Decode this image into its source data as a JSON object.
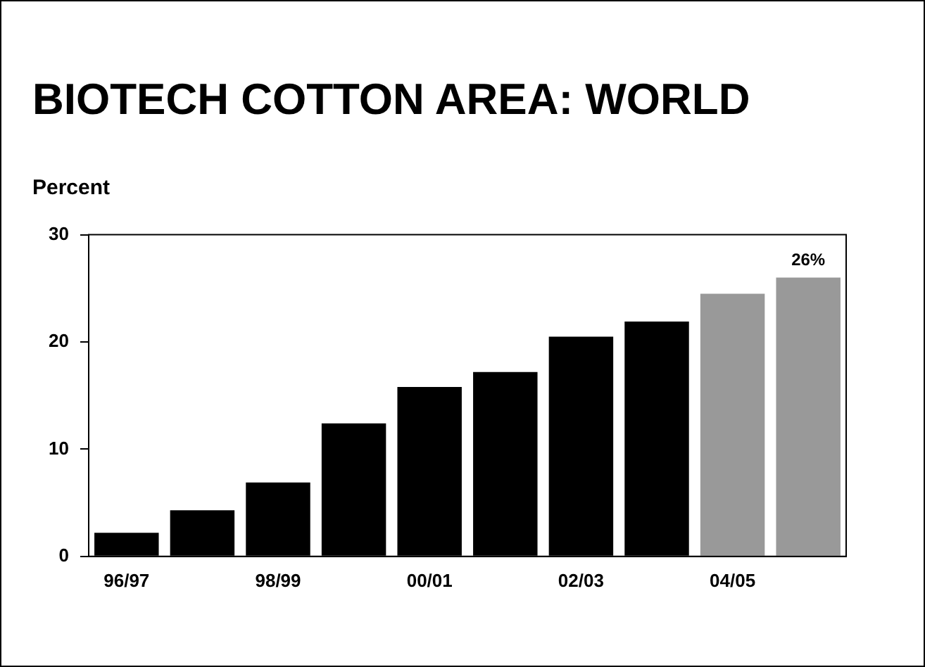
{
  "chart_data": {
    "type": "bar",
    "title": "BIOTECH COTTON AREA: WORLD",
    "ylabel": "Percent",
    "categories": [
      "96/97",
      null,
      "98/99",
      null,
      "00/01",
      null,
      "02/03",
      null,
      "04/05",
      null
    ],
    "values": [
      2.2,
      4.3,
      6.9,
      12.4,
      15.8,
      17.2,
      20.5,
      21.9,
      24.5,
      26
    ],
    "colors": [
      "#000000",
      "#000000",
      "#000000",
      "#000000",
      "#000000",
      "#000000",
      "#000000",
      "#000000",
      "#999999",
      "#999999"
    ],
    "value_labels": [
      null,
      null,
      null,
      null,
      null,
      null,
      null,
      null,
      null,
      "26%"
    ],
    "ylim": [
      0,
      30
    ],
    "yticks": [
      0,
      10,
      20,
      30
    ],
    "legend": false
  }
}
